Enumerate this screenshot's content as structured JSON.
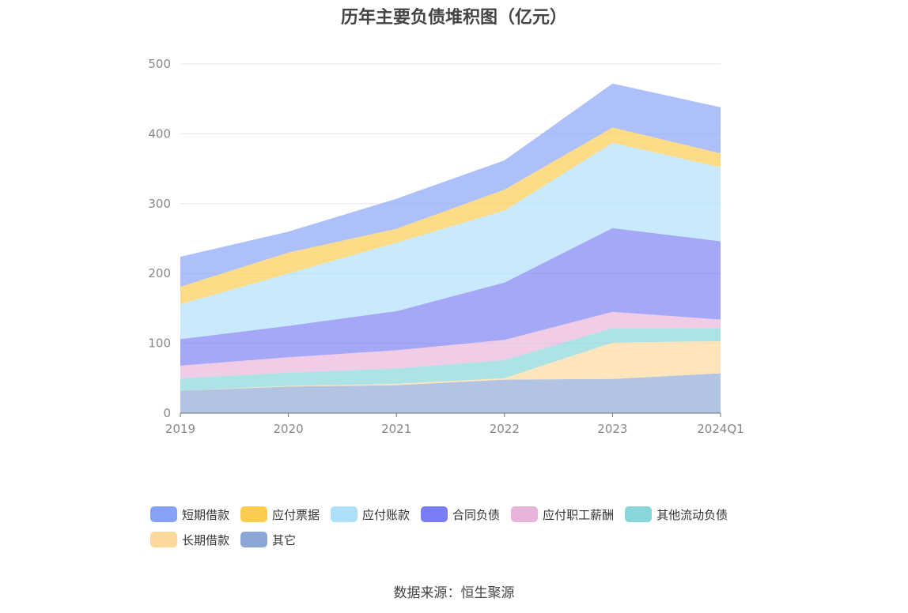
{
  "title": "历年主要负债堆积图（亿元）",
  "source": "数据来源：恒生聚源",
  "chart_data": {
    "type": "area",
    "stacked": true,
    "x": [
      "2019",
      "2020",
      "2021",
      "2022",
      "2023",
      "2024Q1"
    ],
    "ylim": [
      0,
      500
    ],
    "yticks": [
      0,
      100,
      200,
      300,
      400,
      500
    ],
    "grid": true,
    "legend_position": "bottom",
    "series": [
      {
        "name": "其它",
        "color": "#8ea6d6",
        "values": [
          32,
          38,
          40,
          48,
          49,
          57
        ]
      },
      {
        "name": "长期借款",
        "color": "#fdd89b",
        "values": [
          0,
          1,
          2,
          2,
          52,
          46
        ]
      },
      {
        "name": "其他流动负债",
        "color": "#87d6d8",
        "values": [
          18,
          19,
          22,
          26,
          21,
          19
        ]
      },
      {
        "name": "应付职工薪酬",
        "color": "#e9b4da",
        "values": [
          18,
          22,
          26,
          29,
          23,
          12
        ]
      },
      {
        "name": "合同负债",
        "color": "#7b7ef3",
        "values": [
          38,
          45,
          56,
          82,
          120,
          112
        ]
      },
      {
        "name": "应付账款",
        "color": "#aee0fa",
        "values": [
          50,
          75,
          98,
          103,
          122,
          106
        ]
      },
      {
        "name": "应付票据",
        "color": "#fdcb4e",
        "values": [
          25,
          30,
          20,
          30,
          22,
          20
        ]
      },
      {
        "name": "短期借款",
        "color": "#86a2f7",
        "values": [
          43,
          30,
          43,
          42,
          63,
          66
        ]
      }
    ],
    "legend_order": [
      "短期借款",
      "应付票据",
      "应付账款",
      "合同负债",
      "应付职工薪酬",
      "其他流动负债",
      "长期借款",
      "其它"
    ]
  }
}
